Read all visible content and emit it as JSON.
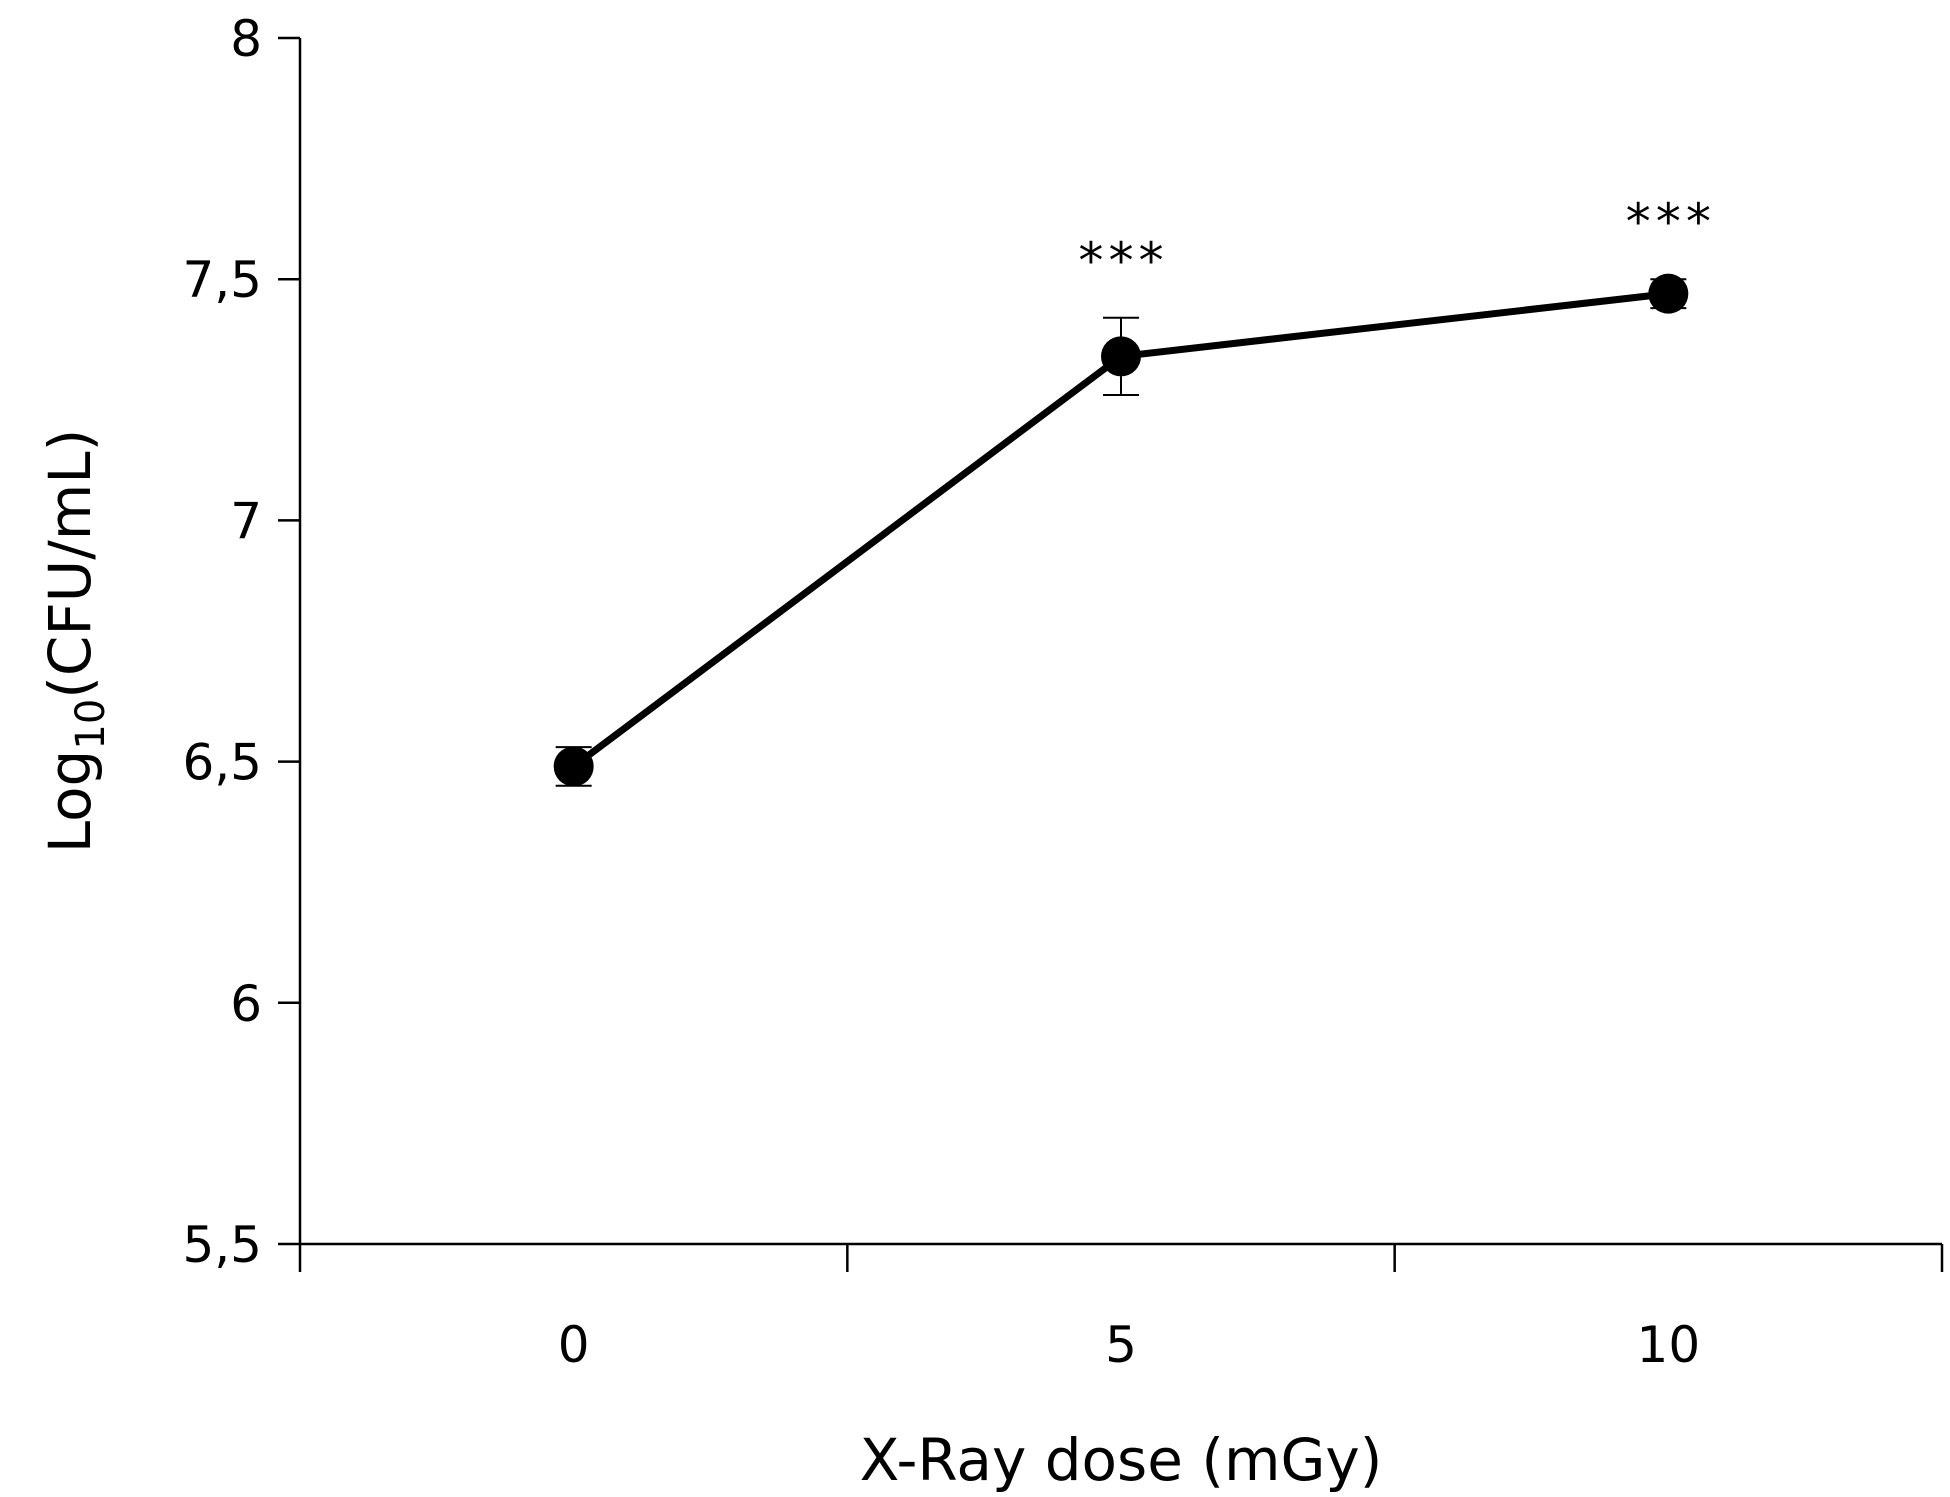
{
  "chart_data": {
    "type": "line",
    "categories": [
      "0",
      "5",
      "10"
    ],
    "x": [
      0,
      5,
      10
    ],
    "series": [
      {
        "values": [
          6.49,
          7.34,
          7.47
        ],
        "error": [
          0.04,
          0.08,
          0.03
        ],
        "annotations": [
          "",
          "***",
          "***"
        ],
        "color": "#000000"
      }
    ],
    "xlabel": "X-Ray dose (mGy)",
    "ylabel_main": "Log",
    "ylabel_sub": "10",
    "ylabel_rest": "(CFU/mL)",
    "ylim": [
      5.5,
      8
    ],
    "yticks": [
      5.5,
      6,
      6.5,
      7,
      7.5,
      8
    ],
    "ytick_labels": [
      "5,5",
      "6",
      "6,5",
      "7",
      "7,5",
      "8"
    ],
    "grid": false,
    "legend": "none"
  }
}
